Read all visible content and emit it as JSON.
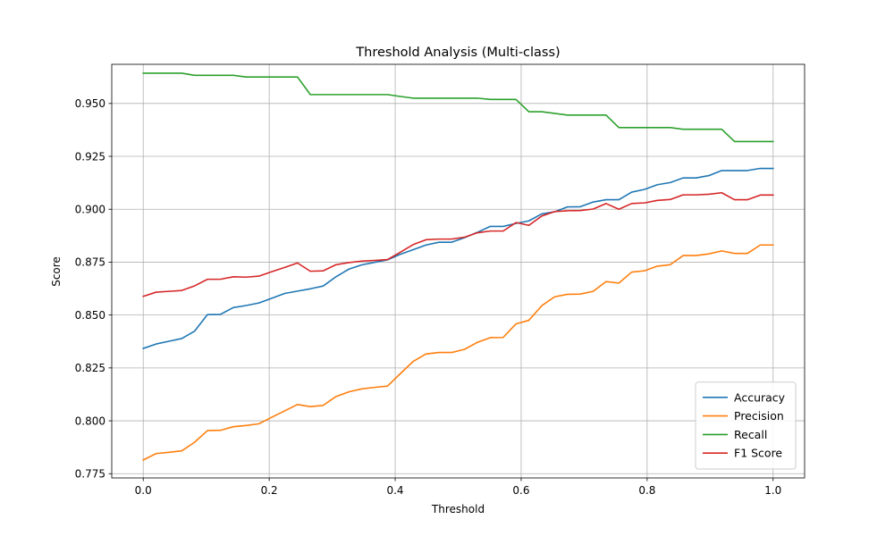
{
  "chart_data": {
    "type": "line",
    "title": "Threshold Analysis (Multi-class)",
    "xlabel": "Threshold",
    "ylabel": "Score",
    "xlim": [
      -0.05,
      1.05
    ],
    "ylim": [
      0.773,
      0.9685
    ],
    "grid": true,
    "legend_position": "lower-right",
    "xticks": [
      {
        "value": 0.0,
        "label": "0.0"
      },
      {
        "value": 0.2,
        "label": "0.2"
      },
      {
        "value": 0.4,
        "label": "0.4"
      },
      {
        "value": 0.6,
        "label": "0.6"
      },
      {
        "value": 0.8,
        "label": "0.8"
      },
      {
        "value": 1.0,
        "label": "1.0"
      }
    ],
    "yticks": [
      {
        "value": 0.775,
        "label": "0.775"
      },
      {
        "value": 0.8,
        "label": "0.800"
      },
      {
        "value": 0.825,
        "label": "0.825"
      },
      {
        "value": 0.85,
        "label": "0.850"
      },
      {
        "value": 0.875,
        "label": "0.875"
      },
      {
        "value": 0.9,
        "label": "0.900"
      },
      {
        "value": 0.925,
        "label": "0.925"
      },
      {
        "value": 0.95,
        "label": "0.950"
      }
    ],
    "x": [
      0.0,
      0.0204,
      0.0408,
      0.0612,
      0.0816,
      0.102,
      0.1224,
      0.1429,
      0.1633,
      0.1837,
      0.2041,
      0.2245,
      0.2449,
      0.2653,
      0.2857,
      0.3061,
      0.3265,
      0.3469,
      0.3673,
      0.3878,
      0.4082,
      0.4286,
      0.449,
      0.4694,
      0.4898,
      0.5102,
      0.5306,
      0.551,
      0.5714,
      0.5918,
      0.6122,
      0.6327,
      0.6531,
      0.6735,
      0.6939,
      0.7143,
      0.7347,
      0.7551,
      0.7755,
      0.7959,
      0.8163,
      0.8367,
      0.8571,
      0.8776,
      0.898,
      0.9184,
      0.9388,
      0.9592,
      0.9796,
      1.0
    ],
    "series": [
      {
        "name": "Accuracy",
        "color": "#1f77b4",
        "values": [
          0.8342,
          0.8363,
          0.8376,
          0.8389,
          0.8424,
          0.8502,
          0.8503,
          0.8535,
          0.8545,
          0.8557,
          0.8579,
          0.8602,
          0.8613,
          0.8624,
          0.8637,
          0.8681,
          0.8717,
          0.8737,
          0.8749,
          0.8761,
          0.8787,
          0.8809,
          0.8831,
          0.8844,
          0.8844,
          0.8866,
          0.8891,
          0.8919,
          0.8919,
          0.8933,
          0.8945,
          0.8978,
          0.8988,
          0.9011,
          0.9012,
          0.9034,
          0.9045,
          0.9045,
          0.9081,
          0.9094,
          0.9116,
          0.9126,
          0.9148,
          0.9148,
          0.9159,
          0.9183,
          0.9183,
          0.9183,
          0.9193,
          0.9193
        ]
      },
      {
        "name": "Precision",
        "color": "#ff7f0e",
        "values": [
          0.7815,
          0.7845,
          0.7851,
          0.7858,
          0.7899,
          0.7954,
          0.7955,
          0.7972,
          0.7978,
          0.7986,
          0.8017,
          0.8047,
          0.8077,
          0.8067,
          0.8073,
          0.8115,
          0.8137,
          0.8151,
          0.8158,
          0.8164,
          0.8223,
          0.8281,
          0.8316,
          0.8323,
          0.8323,
          0.8338,
          0.8371,
          0.8393,
          0.8394,
          0.8458,
          0.8475,
          0.8544,
          0.8586,
          0.8598,
          0.8599,
          0.8612,
          0.8658,
          0.8651,
          0.8703,
          0.8709,
          0.8731,
          0.8738,
          0.8781,
          0.8781,
          0.8789,
          0.8803,
          0.8791,
          0.8791,
          0.8831,
          0.8831
        ]
      },
      {
        "name": "Recall",
        "color": "#2ca02c",
        "values": [
          0.9643,
          0.9643,
          0.9643,
          0.9643,
          0.9633,
          0.9633,
          0.9633,
          0.9633,
          0.9625,
          0.9625,
          0.9625,
          0.9625,
          0.9625,
          0.9542,
          0.9542,
          0.9542,
          0.9542,
          0.9542,
          0.9542,
          0.9542,
          0.9533,
          0.9525,
          0.9525,
          0.9525,
          0.9525,
          0.9525,
          0.9525,
          0.9519,
          0.9519,
          0.9519,
          0.9461,
          0.9461,
          0.9453,
          0.9445,
          0.9445,
          0.9445,
          0.9445,
          0.9386,
          0.9386,
          0.9386,
          0.9386,
          0.9386,
          0.9378,
          0.9378,
          0.9378,
          0.9378,
          0.932,
          0.932,
          0.932,
          0.932
        ]
      },
      {
        "name": "F1 Score",
        "color": "#d62728",
        "values": [
          0.8588,
          0.8608,
          0.8612,
          0.8616,
          0.8638,
          0.8669,
          0.8669,
          0.8681,
          0.8679,
          0.8684,
          0.8705,
          0.8725,
          0.8746,
          0.8707,
          0.8709,
          0.8738,
          0.8748,
          0.8755,
          0.8758,
          0.8762,
          0.8797,
          0.8833,
          0.8856,
          0.8859,
          0.8859,
          0.8868,
          0.8889,
          0.8897,
          0.8897,
          0.8937,
          0.8924,
          0.8968,
          0.8989,
          0.8993,
          0.8994,
          0.9001,
          0.9027,
          0.9,
          0.9027,
          0.903,
          0.9042,
          0.9046,
          0.9068,
          0.9068,
          0.9071,
          0.9078,
          0.9045,
          0.9045,
          0.9067,
          0.9067
        ]
      }
    ]
  }
}
